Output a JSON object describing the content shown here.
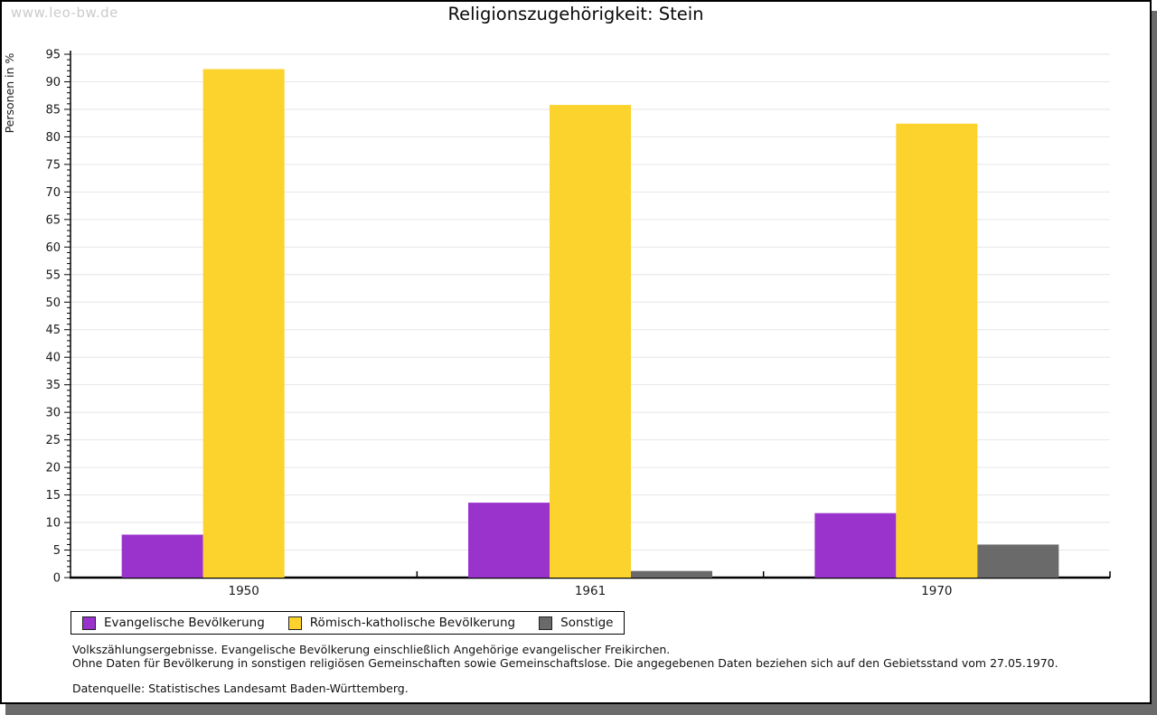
{
  "watermark": "www.leo-bw.de",
  "header": {
    "title": "Religionszugehörigkeit: Stein"
  },
  "chart_data": {
    "type": "bar",
    "title": "Religionszugehörigkeit: Stein",
    "ylabel": "Personen in %",
    "xlabel": "",
    "categories": [
      "1950",
      "1961",
      "1970"
    ],
    "series": [
      {
        "name": "Evangelische Bevölkerung",
        "color": "#9933CC",
        "values": [
          7.8,
          13.6,
          11.7
        ]
      },
      {
        "name": "Römisch-katholische Bevölkerung",
        "color": "#FCD32D",
        "values": [
          92.3,
          85.8,
          82.4
        ]
      },
      {
        "name": "Sonstige",
        "color": "#6A6A6A",
        "values": [
          0,
          1.2,
          6.0
        ]
      }
    ],
    "ylim": [
      0,
      95
    ],
    "ytick_step": 5,
    "yminor_step": 1,
    "grid": true,
    "legend_position": "bottom-left"
  },
  "footnotes": {
    "line1": "Volkszählungsergebnisse. Evangelische Bevölkerung einschließlich Angehörige evangelischer Freikirchen.",
    "line2": "Ohne Daten für Bevölkerung in sonstigen religiösen Gemeinschaften sowie Gemeinschaftslose. Die angegebenen Daten beziehen sich auf den Gebietsstand vom 27.05.1970.",
    "source": "Datenquelle: Statistisches Landesamt Baden-Württemberg."
  },
  "colors": {
    "shadow": "#6B6B6B",
    "grid": "#E6E6E6",
    "watermark": "#CBCBCB",
    "axis": "#000000"
  }
}
